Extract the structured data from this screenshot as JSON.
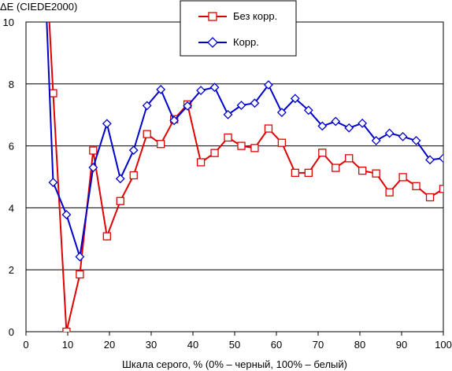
{
  "chart_data": {
    "type": "line",
    "ylabel": "ΔE (CIEDE2000)",
    "xlabel": "Шкала серого, % (0% – черный, 100% – белый)",
    "xlim": [
      0,
      100
    ],
    "ylim": [
      0,
      10
    ],
    "x_ticks": [
      0,
      10,
      20,
      30,
      40,
      50,
      60,
      70,
      80,
      90,
      100
    ],
    "y_ticks": [
      0,
      2,
      4,
      6,
      8,
      10
    ],
    "grid": "horizontal",
    "legend_position": "top-center",
    "series": [
      {
        "name": "Без корр.",
        "color": "#e00000",
        "marker": "square",
        "x": [
          3.2,
          6.5,
          9.7,
          12.9,
          16.1,
          19.4,
          22.6,
          25.8,
          29.0,
          32.3,
          35.5,
          38.7,
          41.9,
          45.2,
          48.4,
          51.6,
          54.8,
          58.1,
          61.3,
          64.5,
          67.7,
          71.0,
          74.2,
          77.4,
          80.6,
          83.9,
          87.1,
          90.3,
          93.5,
          96.8,
          100
        ],
        "y": [
          16.0,
          7.7,
          0.0,
          1.85,
          5.85,
          3.08,
          4.22,
          5.05,
          6.38,
          6.06,
          6.86,
          7.34,
          5.47,
          5.77,
          6.27,
          6.0,
          5.93,
          6.56,
          6.1,
          5.13,
          5.13,
          5.78,
          5.29,
          5.6,
          5.2,
          5.11,
          4.5,
          4.99,
          4.7,
          4.34,
          4.61
        ]
      },
      {
        "name": "Корр.",
        "color": "#0000cc",
        "marker": "diamond",
        "x": [
          3.2,
          6.5,
          9.7,
          12.9,
          16.1,
          19.4,
          22.6,
          25.8,
          29.0,
          32.3,
          35.5,
          38.7,
          41.9,
          45.2,
          48.4,
          51.6,
          54.8,
          58.1,
          61.3,
          64.5,
          67.7,
          71.0,
          74.2,
          77.4,
          80.6,
          83.9,
          87.1,
          90.3,
          93.5,
          96.8,
          100
        ],
        "y": [
          16.0,
          4.82,
          3.78,
          2.42,
          5.3,
          6.72,
          4.94,
          5.86,
          7.3,
          7.82,
          6.82,
          7.29,
          7.79,
          7.89,
          7.01,
          7.31,
          7.38,
          7.97,
          7.08,
          7.53,
          7.15,
          6.64,
          6.79,
          6.58,
          6.73,
          6.17,
          6.41,
          6.3,
          6.17,
          5.55,
          5.6
        ]
      }
    ]
  }
}
